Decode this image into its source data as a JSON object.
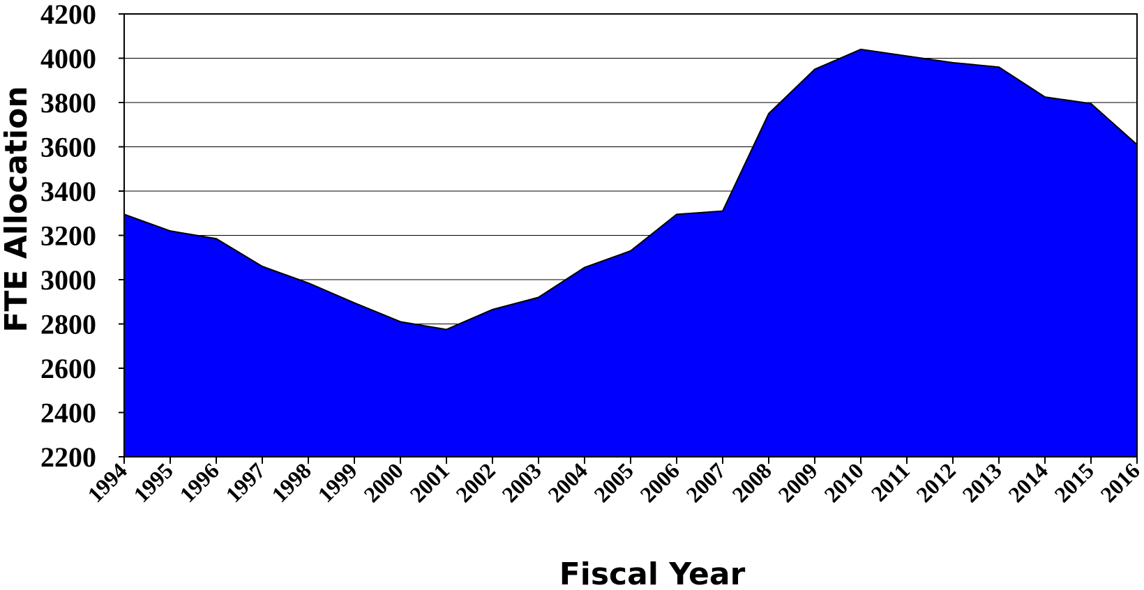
{
  "chart_data": {
    "type": "area",
    "title": "",
    "xlabel": "Fiscal Year",
    "ylabel": "FTE Allocation",
    "x": [
      "1994",
      "1995",
      "1996",
      "1997",
      "1998",
      "1999",
      "2000",
      "2001",
      "2002",
      "2003",
      "2004",
      "2005",
      "2006",
      "2007",
      "2008",
      "2009",
      "2010",
      "2011",
      "2012",
      "2013",
      "2014",
      "2015",
      "2016"
    ],
    "series": [
      {
        "values": [
          3295,
          3220,
          3185,
          3060,
          2985,
          2895,
          2810,
          2775,
          2865,
          2920,
          3055,
          3130,
          3295,
          3310,
          3750,
          3950,
          4040,
          4010,
          3980,
          3960,
          3825,
          3795,
          3610
        ]
      }
    ],
    "ylim": [
      2200,
      4200
    ],
    "yticks": [
      2200,
      2400,
      2600,
      2800,
      3000,
      3200,
      3400,
      3600,
      3800,
      4000,
      4200
    ],
    "grid": true,
    "legend": "none",
    "colors": {
      "fill": "#0000ff",
      "outline": "#000000",
      "grid": "#000000"
    }
  }
}
